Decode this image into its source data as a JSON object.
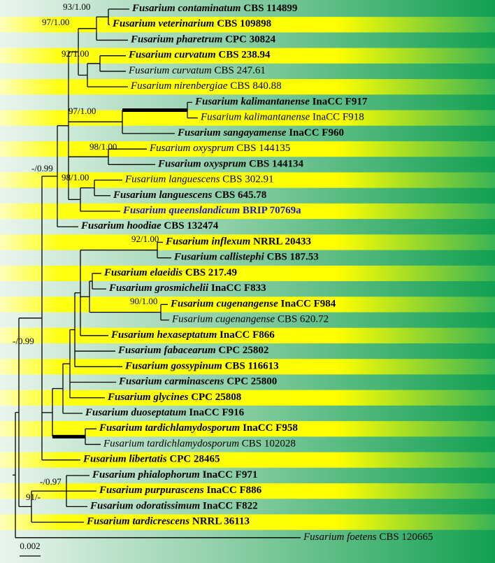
{
  "leaves": [
    {
      "species": "Fusarium contaminatum",
      "strain": "CBS 114899",
      "bold": true
    },
    {
      "species": "Fusarium veterinarium",
      "strain": "CBS 109898",
      "bold": true
    },
    {
      "species": "Fusarium pharetrum",
      "strain": "CPC 30824",
      "bold": true
    },
    {
      "species": "Fusarium curvatum",
      "strain": "CBS 238.94",
      "bold": true
    },
    {
      "species": "Fusarium curvatum",
      "strain": "CBS 247.61",
      "bold": false
    },
    {
      "species": "Fusarium nirenbergiae",
      "strain": "CBS 840.88",
      "bold": false
    },
    {
      "species": "Fusarium kalimantanense",
      "strain": "InaCC F917",
      "bold": true
    },
    {
      "species": "Fusarium kalimantanense",
      "strain": "InaCC F918",
      "bold": false
    },
    {
      "species": "Fusarium sangayamense",
      "strain": "InaCC F960",
      "bold": true
    },
    {
      "species": "Fusarium oxysprum",
      "strain": "CBS 144135",
      "bold": false
    },
    {
      "species": "Fusarium oxysprum",
      "strain": "CBS 144134",
      "bold": true
    },
    {
      "species": "Fusarium languescens",
      "strain": "CBS 302.91",
      "bold": false
    },
    {
      "species": "Fusarium languescens",
      "strain": "CBS 645.78",
      "bold": true
    },
    {
      "species": "Fusarium queenslandicum",
      "strain": "BRIP 70769a",
      "bold": true,
      "color": "#1a1ad0"
    },
    {
      "species": "Fusarium hoodiae",
      "strain": "CBS 132474",
      "bold": true
    },
    {
      "species": "Fusarium inflexum",
      "strain": "NRRL 20433",
      "bold": true
    },
    {
      "species": "Fusarium callistephi",
      "strain": "CBS 187.53",
      "bold": true
    },
    {
      "species": "Fusarium elaeidis",
      "strain": "CBS 217.49",
      "bold": true
    },
    {
      "species": "Fusarium grosmichelii",
      "strain": "InaCC F833",
      "bold": true
    },
    {
      "species": "Fusarium cugenangense",
      "strain": "InaCC F984",
      "bold": true
    },
    {
      "species": "Fusarium cugenangense",
      "strain": "CBS 620.72",
      "bold": false
    },
    {
      "species": "Fusarium hexaseptatum",
      "strain": "InaCC F866",
      "bold": true
    },
    {
      "species": "Fusarium fabacearum",
      "strain": "CPC 25802",
      "bold": true
    },
    {
      "species": "Fusarium gossypinum",
      "strain": "CBS 116613",
      "bold": true
    },
    {
      "species": "Fusarium carminascens",
      "strain": "CPC 25800",
      "bold": true
    },
    {
      "species": "Fusarium glycines",
      "strain": "CPC 25808",
      "bold": true
    },
    {
      "species": "Fusarium duoseptatum",
      "strain": "InaCC F916",
      "bold": true
    },
    {
      "species": "Fusarium tardichlamydosporum",
      "strain": "InaCC F958",
      "bold": true
    },
    {
      "species": "Fusarium tardichlamydosporum",
      "strain": "CBS 102028",
      "bold": false
    },
    {
      "species": "Fusarium libertatis",
      "strain": "CPC 28465",
      "bold": true
    },
    {
      "species": "Fusarium phialophorum",
      "strain": "InaCC F971",
      "bold": true
    },
    {
      "species": "Fusarium purpurascens",
      "strain": "InaCC F886",
      "bold": true
    },
    {
      "species": "Fusarium odoratissimum",
      "strain": "InaCC F822",
      "bold": true
    },
    {
      "species": "Fusarium tardicrescens",
      "strain": "NRRL 36113",
      "bold": true
    },
    {
      "species": "Fusarium foetens",
      "strain": "CBS 120665",
      "bold": false
    }
  ],
  "supports": [
    "93/1.00",
    "97/1.00",
    "92/1.00",
    "97/1.00",
    "98/1.00",
    "98/1.00",
    "-/0.99",
    "92/1.00",
    "90/1.00",
    "-/0.99",
    "-/0.97",
    "91/-"
  ],
  "scale_bar": "0.002"
}
